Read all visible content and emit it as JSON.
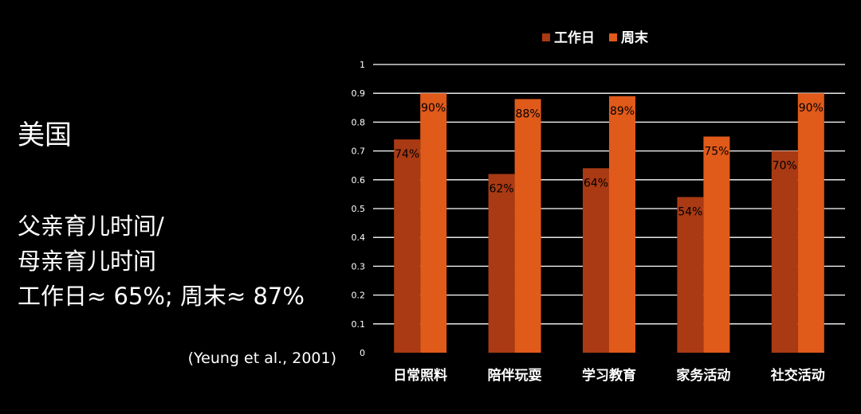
{
  "left": {
    "heading": "美国",
    "ratio_line1": "父亲育儿时间/",
    "ratio_line2": "母亲育儿时间",
    "ratio_line3": "工作日≈ 65%; 周末≈ 87%",
    "citation": "(Yeung et al., 2001)"
  },
  "colors": {
    "background": "#000000",
    "weekday": "#A93A14",
    "weekend": "#E05A1A",
    "grid": "#ffffff",
    "text": "#ffffff",
    "data_label": "#000000"
  },
  "chart_data": {
    "type": "bar",
    "categories": [
      "日常照料",
      "陪伴玩耍",
      "学习教育",
      "家务活动",
      "社交活动"
    ],
    "series": [
      {
        "name": "工作日",
        "values": [
          0.74,
          0.62,
          0.64,
          0.54,
          0.7
        ],
        "labels": [
          "74%",
          "62%",
          "64%",
          "54%",
          "70%"
        ]
      },
      {
        "name": "周末",
        "values": [
          0.9,
          0.88,
          0.89,
          0.75,
          0.9
        ],
        "labels": [
          "90%",
          "88%",
          "89%",
          "75%",
          "90%"
        ]
      }
    ],
    "ylim": [
      0,
      1
    ],
    "yticks": [
      "0",
      "0.1",
      "0.2",
      "0.3",
      "0.4",
      "0.5",
      "0.6",
      "0.7",
      "0.8",
      "0.9",
      "1"
    ],
    "grid": true,
    "legend_position": "top"
  }
}
